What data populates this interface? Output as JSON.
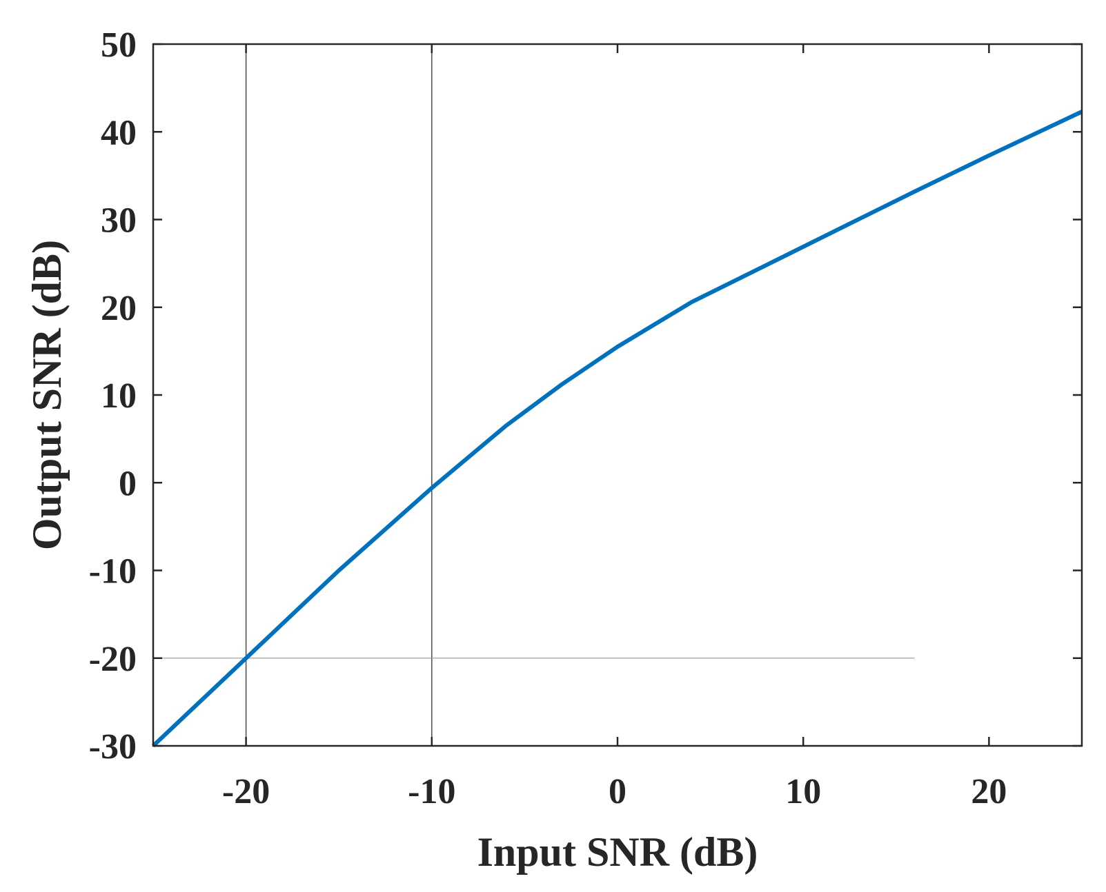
{
  "chart_data": {
    "type": "line",
    "title": "",
    "xlabel": "Input SNR (dB)",
    "ylabel": "Output SNR (dB)",
    "xlim": [
      -25,
      25
    ],
    "ylim": [
      -30,
      50
    ],
    "xticks": [
      -20,
      -10,
      0,
      10,
      20
    ],
    "yticks": [
      -30,
      -20,
      -10,
      0,
      10,
      20,
      30,
      40,
      50
    ],
    "grid": false,
    "legend": "none",
    "series": [
      {
        "color": "#0072BD",
        "x": [
          -25,
          -20,
          -15,
          -10,
          -6,
          -3,
          0,
          4,
          8,
          12,
          16,
          20,
          25
        ],
        "y": [
          -30,
          -20,
          -10,
          -0.6,
          6.5,
          11.2,
          15.5,
          20.6,
          24.8,
          29,
          33.2,
          37.3,
          42.3
        ]
      }
    ],
    "reference_lines": [
      {
        "orientation": "vertical",
        "x": -20,
        "y_from": -30,
        "y_to": 50,
        "color": "#555555"
      },
      {
        "orientation": "vertical",
        "x": -10,
        "y_from": -30,
        "y_to": 50,
        "color": "#555555"
      },
      {
        "orientation": "horizontal",
        "y": -20,
        "x_from": -25,
        "x_to": 16,
        "color": "#888888"
      }
    ]
  }
}
